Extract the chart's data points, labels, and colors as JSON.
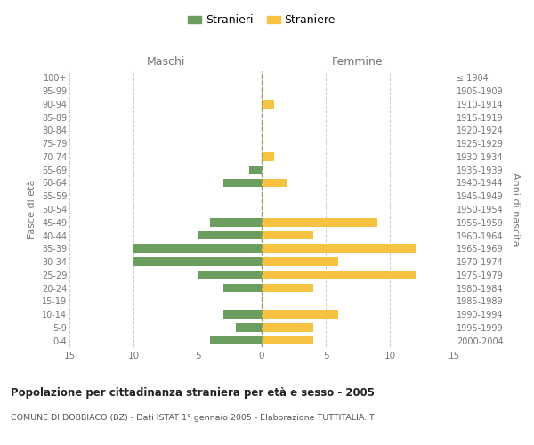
{
  "age_groups": [
    "100+",
    "95-99",
    "90-94",
    "85-89",
    "80-84",
    "75-79",
    "70-74",
    "65-69",
    "60-64",
    "55-59",
    "50-54",
    "45-49",
    "40-44",
    "35-39",
    "30-34",
    "25-29",
    "20-24",
    "15-19",
    "10-14",
    "5-9",
    "0-4"
  ],
  "birth_years": [
    "≤ 1904",
    "1905-1909",
    "1910-1914",
    "1915-1919",
    "1920-1924",
    "1925-1929",
    "1930-1934",
    "1935-1939",
    "1940-1944",
    "1945-1949",
    "1950-1954",
    "1955-1959",
    "1960-1964",
    "1965-1969",
    "1970-1974",
    "1975-1979",
    "1980-1984",
    "1985-1989",
    "1990-1994",
    "1995-1999",
    "2000-2004"
  ],
  "maschi_stranieri": [
    0,
    0,
    0,
    0,
    0,
    0,
    0,
    1,
    3,
    0,
    0,
    4,
    5,
    10,
    10,
    5,
    3,
    0,
    3,
    2,
    4
  ],
  "femmine_straniere": [
    0,
    0,
    1,
    0,
    0,
    0,
    1,
    0,
    2,
    0,
    0,
    9,
    4,
    12,
    6,
    12,
    4,
    0,
    6,
    4,
    4
  ],
  "color_maschi": "#6b9e5e",
  "color_femmine": "#f5c242",
  "title": "Popolazione per cittadinanza straniera per età e sesso - 2005",
  "subtitle": "COMUNE DI DOBBIACO (BZ) - Dati ISTAT 1° gennaio 2005 - Elaborazione TUTTITALIA.IT",
  "xlabel_left": "Maschi",
  "xlabel_right": "Femmine",
  "ylabel_left": "Fasce di età",
  "ylabel_right": "Anni di nascita",
  "legend_stranieri": "Stranieri",
  "legend_straniere": "Straniere",
  "xlim": 15,
  "background_color": "#ffffff",
  "grid_color": "#cccccc"
}
